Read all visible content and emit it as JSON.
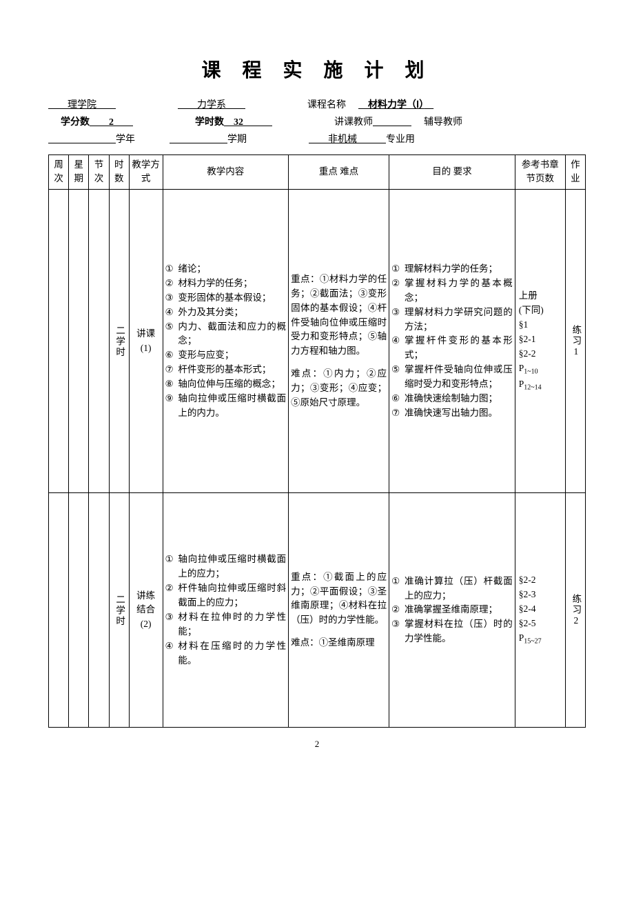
{
  "title": "课 程 实 施 计 划",
  "header": {
    "college": "理学院",
    "dept": "力学系",
    "course_label": "课程名称",
    "course_name": "材料力学（Ⅰ）",
    "credits_label": "学分数",
    "credits": "2",
    "hours_label": "学时数",
    "hours": "32",
    "instructor_label": "讲课教师",
    "instructor": "",
    "tutor_label": "辅导教师",
    "tutor": "",
    "year_label": "学年",
    "term_label": "学期",
    "major_name": "非机械",
    "major_suffix": "专业用"
  },
  "cols": {
    "week": "周次",
    "day": "星期",
    "session": "节次",
    "hours": "时数",
    "mode": "教学方式",
    "content": "教学内容",
    "keydiff": "重点 难点",
    "purpose": "目的  要求",
    "ref": "参考书章节页数",
    "hw": "作业"
  },
  "row1": {
    "hours": "二学时",
    "mode_l1": "讲课",
    "mode_l2": "(1)",
    "content": [
      "绪论；",
      "材料力学的任务；",
      "变形固体的基本假设；",
      "外力及其分类；",
      "内力、截面法和应力的概念；",
      "变形与应变；",
      "杆件变形的基本形式；",
      "轴向位伸与压缩的概念；",
      "轴向拉伸或压缩时横截面上的内力。"
    ],
    "key_heading": "重点：①材料力学的任务；②截面法；③变形固体的基本假设；④杆件受轴向位伸或压缩时受力和变形特点；⑤轴力方程和轴力图。",
    "diff_heading": "难点：①内力；②应力；③变形；④应变；⑤原始尺寸原理。",
    "purpose": [
      "理解材料力学的任务；",
      "掌握材料力学的基本概念；",
      "理解材料力学研究问题的方法；",
      "掌握杆件变形的基本形式；",
      "掌握杆件受轴向位伸或压缩时受力和变形特点；",
      "准确快速绘制轴力图；",
      "准确快速写出轴力图。"
    ],
    "ref": {
      "l1": "上册",
      "l2": "(下同)",
      "l3": "§1",
      "l4": "§2-1",
      "l5": "§2-2",
      "l6a": "P",
      "l6b": "1~10",
      "l7a": "P",
      "l7b": "12~14"
    },
    "hw": "练习1"
  },
  "row2": {
    "hours": "二学时",
    "mode_l1": "讲练",
    "mode_l2": "结合",
    "mode_l3": "(2)",
    "content": [
      "轴向拉伸或压缩时横截面上的应力；",
      "杆件轴向拉伸或压缩时斜截面上的应力；",
      "材料在拉伸时的力学性能；",
      "材料在压缩时的力学性能。"
    ],
    "key_heading": "重点：①截面上的应力；②平面假设；③圣维南原理；④材料在拉（压）时的力学性能。",
    "diff_heading": "难点：①圣维南原理",
    "purpose": [
      "准确计算拉（压）杆截面上的应力；",
      "准确掌握圣维南原理；",
      "掌握材料在拉（压）时的力学性能。"
    ],
    "ref": {
      "l1": "§2-2",
      "l2": "§2-3",
      "l3": "§2-4",
      "l4": "§2-5",
      "l5a": "P",
      "l5b": "15~27"
    },
    "hw": "练习2"
  },
  "page_number": "2",
  "circled_nums": [
    "①",
    "②",
    "③",
    "④",
    "⑤",
    "⑥",
    "⑦",
    "⑧",
    "⑨"
  ]
}
